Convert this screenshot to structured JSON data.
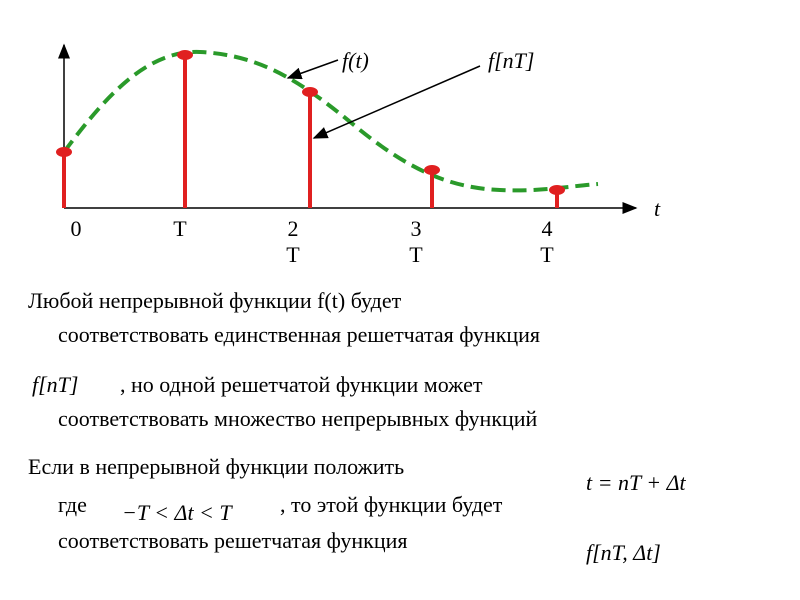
{
  "diagram": {
    "axis_label": "t",
    "ticks": [
      [
        "0"
      ],
      [
        "T"
      ],
      [
        "2",
        "T"
      ],
      [
        "3",
        "T"
      ],
      [
        "4",
        "T"
      ]
    ],
    "curve_label": "f(t)",
    "sample_label": "f[nT]"
  },
  "paragraphs": [
    {
      "lines": [
        "Любой непрерывной функции  f(t)  будет",
        "соответствовать единственная решетчатая функция"
      ]
    },
    {
      "formula": "f[nT]",
      "lines": [
        ", но одной решетчатой функции может",
        "соответствовать множество непрерывных функций"
      ]
    },
    {
      "lines": [
        "Если в непрерывной функции  положить",
        "где",
        ",  то этой функции  будет",
        "соответствовать решетчатая функция"
      ],
      "formulas": [
        "t = nT + Δt",
        "−T < Δt < T",
        "f[nT, Δt]"
      ]
    }
  ]
}
